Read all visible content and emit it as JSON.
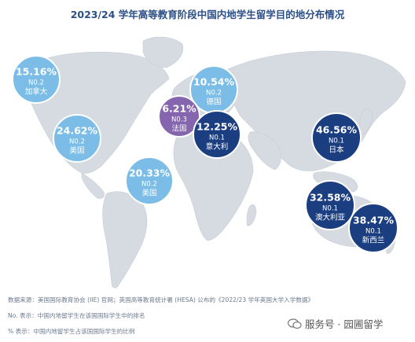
{
  "title": "2023/24 学年高等教育阶段中国内地学生留学目的地分布情况",
  "bubbles": [
    {
      "pct": "15.16%",
      "rank": "N0.2",
      "country": "加拿大",
      "color": "#7bbde6"
    },
    {
      "pct": "10.54%",
      "rank": "N0.2",
      "country": "德国",
      "color": "#7bbde6"
    },
    {
      "pct": "6.21%",
      "rank": "N0.3",
      "country": "法国",
      "color": "#8565ad"
    },
    {
      "pct": "12.25%",
      "rank": "N0.1",
      "country": "意大利",
      "color": "#1b3e80"
    },
    {
      "pct": "24.62%",
      "rank": "N0.2",
      "country": "美国",
      "color": "#7bbde6"
    },
    {
      "pct": "46.56%",
      "rank": "N0.1",
      "country": "日本",
      "color": "#1b3e80"
    },
    {
      "pct": "20.33%",
      "rank": "N0.2",
      "country": "美国",
      "color": "#7bbde6"
    },
    {
      "pct": "32.58%",
      "rank": "N0.1",
      "country": "澳大利亚",
      "color": "#1b3e80"
    },
    {
      "pct": "38.47%",
      "rank": "N0.1",
      "country": "新西兰",
      "color": "#1b3e80"
    }
  ],
  "notes": {
    "source": "数据来源：美国国际教育协会 (IIE) 官网；英国高等教育统计署 (HESA) 公布的《2022/23 学年英国大学入学数据》",
    "rank_note": "No. 表示：中国内地留学生在该国国际学生中的排名",
    "pct_note": "% 表示：中国内地留学生占该国国际学生的比例"
  },
  "watermark": "服务号 · 园圃留学",
  "colors": {
    "map": "#d6dbe2",
    "title": "#2c4f86"
  }
}
